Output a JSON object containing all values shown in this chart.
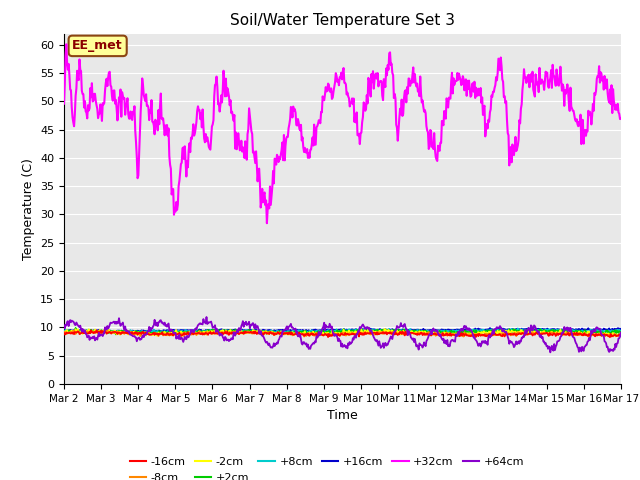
{
  "title": "Soil/Water Temperature Set 3",
  "xlabel": "Time",
  "ylabel": "Temperature (C)",
  "ylim": [
    0,
    62
  ],
  "yticks": [
    0,
    5,
    10,
    15,
    20,
    25,
    30,
    35,
    40,
    45,
    50,
    55,
    60
  ],
  "bg_color": "#e8e8e8",
  "fig_color": "#ffffff",
  "annotation_text": "EE_met",
  "annotation_bg": "#ffff99",
  "annotation_border": "#8B4513",
  "legend_entries": [
    "-16cm",
    "-8cm",
    "-2cm",
    "+2cm",
    "+8cm",
    "+16cm",
    "+32cm",
    "+64cm"
  ],
  "line_colors": {
    "-16cm": "#ff0000",
    "-8cm": "#ff8800",
    "-2cm": "#ffff00",
    "+2cm": "#00cc00",
    "+8cm": "#00cccc",
    "+16cm": "#0000cc",
    "+32cm": "#ff00ff",
    "+64cm": "#8800cc"
  },
  "n_points": 720,
  "x_start": 0,
  "x_end": 15,
  "xtick_labels": [
    "Mar 2",
    "Mar 3",
    "Mar 4",
    "Mar 5",
    "Mar 6",
    "Mar 7",
    "Mar 8",
    "Mar 9",
    "Mar 10",
    "Mar 11",
    "Mar 12",
    "Mar 13",
    "Mar 14",
    "Mar 15",
    "Mar 16",
    "Mar 17"
  ],
  "xtick_positions": [
    0,
    1,
    2,
    3,
    4,
    5,
    6,
    7,
    8,
    9,
    10,
    11,
    12,
    13,
    14,
    15
  ]
}
